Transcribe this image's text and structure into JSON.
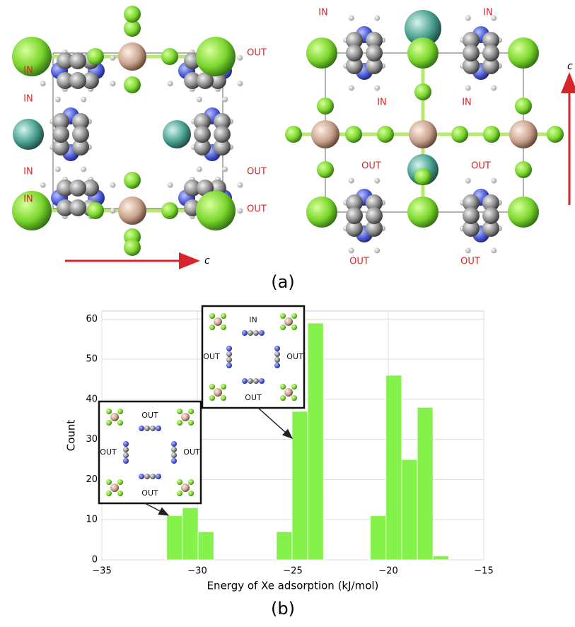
{
  "chart_data": {
    "type": "histogram",
    "xlabel": "Energy of Xe adsorption (kJ/mol)",
    "ylabel": "Count",
    "bins": [
      -31.6,
      -30.78,
      -29.96,
      -29.14,
      -28.32,
      -27.5,
      -26.68,
      -25.86,
      -25.04,
      -24.22,
      -23.4,
      -22.58,
      -21.76,
      -20.94,
      -20.12,
      -19.3,
      -18.48,
      -17.66,
      -16.84
    ],
    "values": [
      11,
      13,
      7,
      0,
      0,
      0,
      0,
      7,
      37,
      59,
      0,
      0,
      0,
      11,
      46,
      25,
      38,
      1
    ],
    "color": "#84f24a",
    "xlim": [
      -35,
      -15
    ],
    "xticks": [
      {
        "value": -35,
        "label": "−35"
      },
      {
        "value": -30,
        "label": "−30"
      },
      {
        "value": -25,
        "label": "−25"
      },
      {
        "value": -20,
        "label": "−20"
      },
      {
        "value": -15,
        "label": "−15"
      }
    ],
    "ylim": [
      0,
      62
    ],
    "yticks": [
      0,
      10,
      20,
      30,
      40,
      50,
      60
    ],
    "grid": true,
    "insets": [
      {
        "labels": [
          "IN",
          "OUT",
          "OUT",
          "OUT"
        ]
      },
      {
        "labels": [
          "OUT",
          "OUT",
          "OUT",
          "OUT"
        ]
      }
    ]
  },
  "panel_a": {
    "left_labels": [
      "IN",
      "OUT",
      "IN",
      "IN",
      "OUT",
      "IN",
      "OUT"
    ],
    "left_axis": "c",
    "right_labels": [
      "IN",
      "IN",
      "IN",
      "IN",
      "OUT",
      "OUT",
      "OUT",
      "OUT"
    ],
    "right_axis": "c"
  },
  "panel_labels": [
    "(a)",
    "(b)"
  ]
}
